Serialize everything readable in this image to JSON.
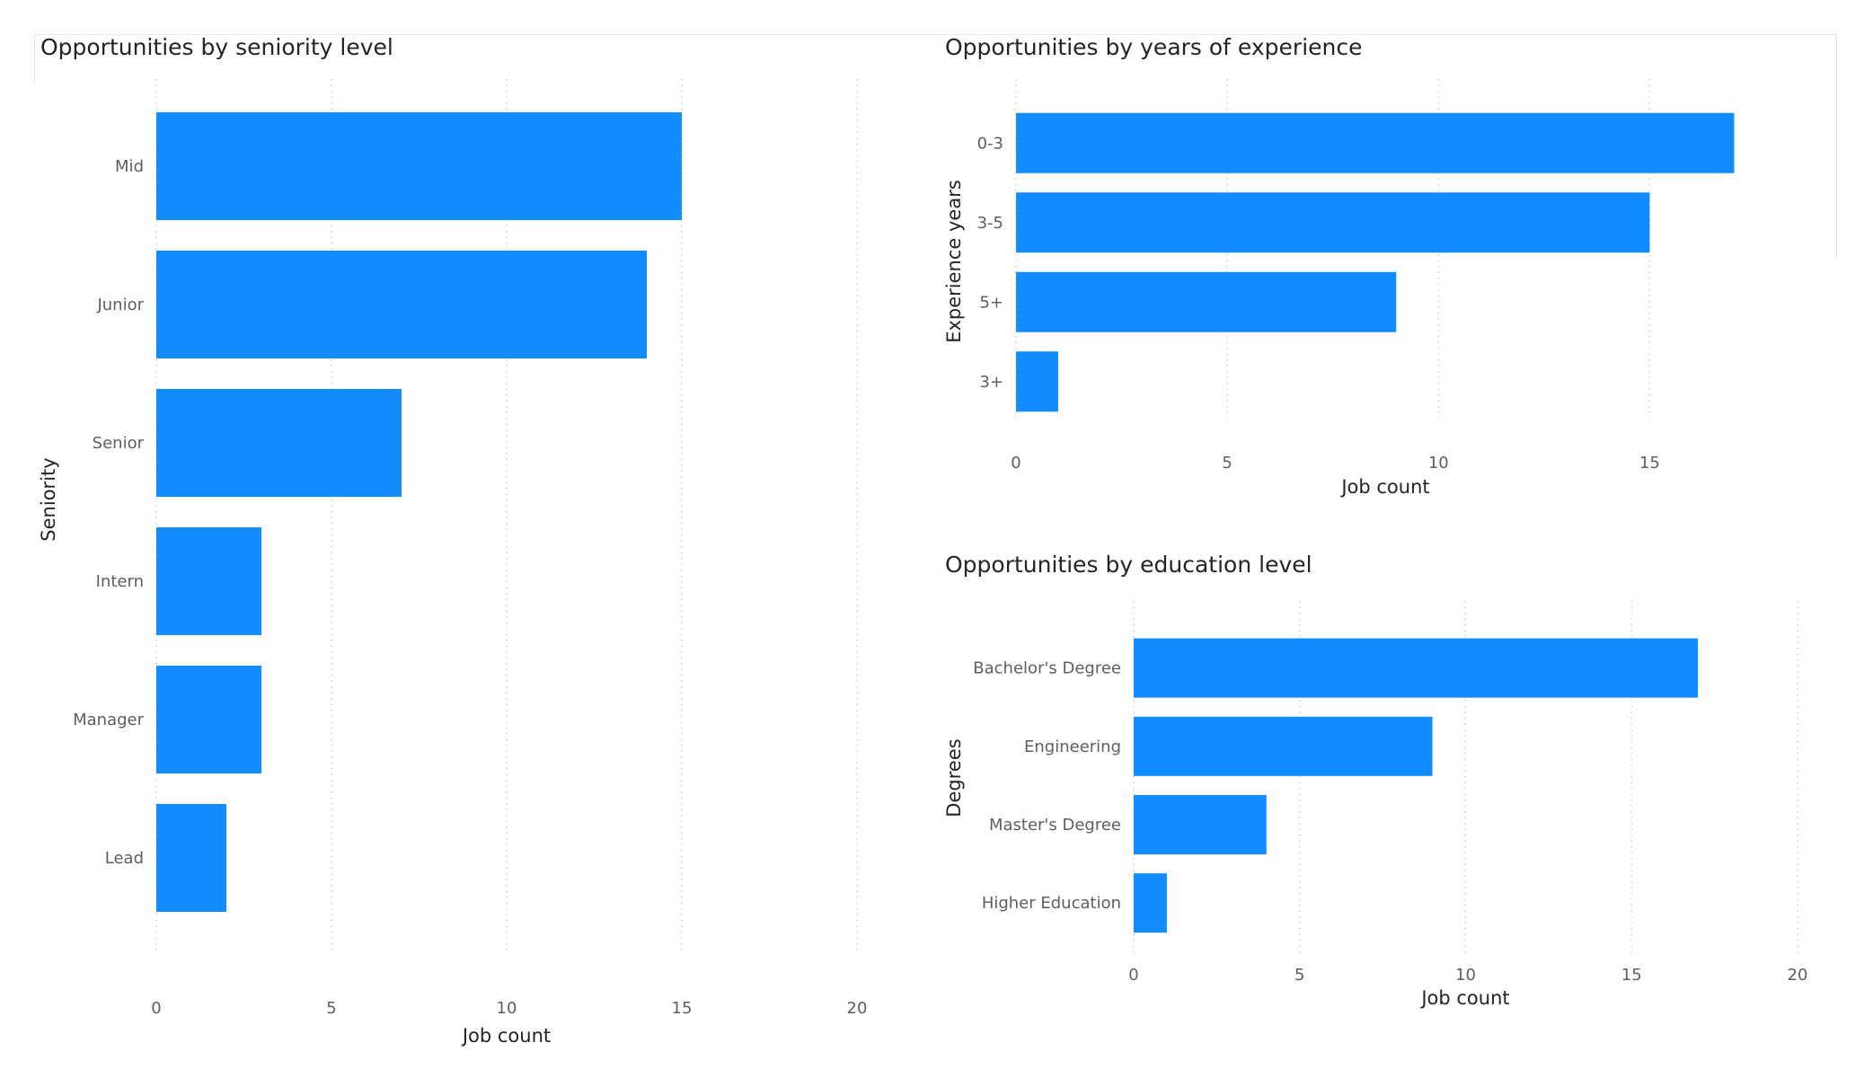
{
  "colors": {
    "bar": "#118DFF",
    "grid": "#c8c6c4",
    "text": "#605e5c",
    "title": "#252423"
  },
  "chart_data": [
    {
      "id": "seniority",
      "type": "bar",
      "orientation": "horizontal",
      "title": "Opportunities by seniority level",
      "xlabel": "Job count",
      "ylabel": "Seniority",
      "categories": [
        "Mid",
        "Junior",
        "Senior",
        "Intern",
        "Manager",
        "Lead"
      ],
      "values": [
        15,
        14,
        7,
        3,
        3,
        2
      ],
      "xlim": [
        0,
        20
      ],
      "xticks": [
        0,
        5,
        10,
        15,
        20
      ],
      "grid": "vertical dotted"
    },
    {
      "id": "experience",
      "type": "bar",
      "orientation": "horizontal",
      "title": "Opportunities by years of experience",
      "xlabel": "Job count",
      "ylabel": "Experience years",
      "categories": [
        "0-3",
        "3-5",
        "5+",
        "3+"
      ],
      "values": [
        17,
        15,
        9,
        1
      ],
      "xlim": [
        0,
        17.5
      ],
      "xticks": [
        0,
        5,
        10,
        15
      ],
      "grid": "vertical dotted"
    },
    {
      "id": "education",
      "type": "bar",
      "orientation": "horizontal",
      "title": "Opportunities by education level",
      "xlabel": "Job count",
      "ylabel": "Degrees",
      "categories": [
        "Bachelor's Degree",
        "Engineering",
        "Master's Degree",
        "Higher Education"
      ],
      "values": [
        17,
        9,
        4,
        1
      ],
      "xlim": [
        0,
        20
      ],
      "xticks": [
        0,
        5,
        10,
        15,
        20
      ],
      "grid": "vertical dotted"
    }
  ]
}
